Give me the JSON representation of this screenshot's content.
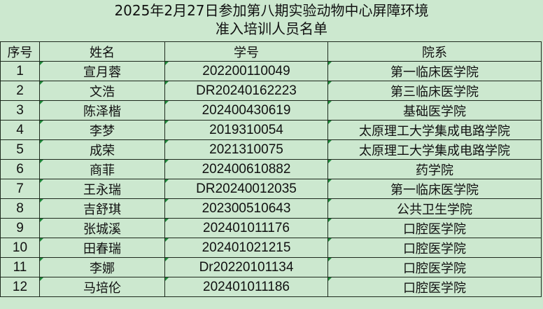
{
  "title": {
    "line1": "2025年2月27日参加第八期实验动物中心屏障环境",
    "line2": "准入培训人员名单"
  },
  "columns": [
    "序号",
    "姓名",
    "学号",
    "院系"
  ],
  "rows": [
    [
      "1",
      "宣月蓉",
      "202200110049",
      "第一临床医学院"
    ],
    [
      "2",
      "文浩",
      "DR20240162223",
      "第三临床医学院"
    ],
    [
      "3",
      "陈泽楷",
      "202400430619",
      "基础医学院"
    ],
    [
      "4",
      "李梦",
      "2019310054",
      "太原理工大学集成电路学院"
    ],
    [
      "5",
      "成荣",
      "2021310075",
      "太原理工大学集成电路学院"
    ],
    [
      "6",
      "商菲",
      "202400610882",
      "药学院"
    ],
    [
      "7",
      "王永瑞",
      "DR20240012035",
      "第一临床医学院"
    ],
    [
      "8",
      "吉舒琪",
      "202300510643",
      "公共卫生学院"
    ],
    [
      "9",
      "张城溪",
      "202401011176",
      "口腔医学院"
    ],
    [
      "10",
      "田春瑞",
      "202401021215",
      "口腔医学院"
    ],
    [
      "11",
      "李娜",
      "Dr20220101134",
      "口腔医学院"
    ],
    [
      "12",
      "马培伦",
      "202401011186",
      "口腔医学院"
    ]
  ],
  "colors": {
    "background": "#cce8cf",
    "border": "#1e2a1e",
    "cell_marker": "#1f8a3a"
  }
}
